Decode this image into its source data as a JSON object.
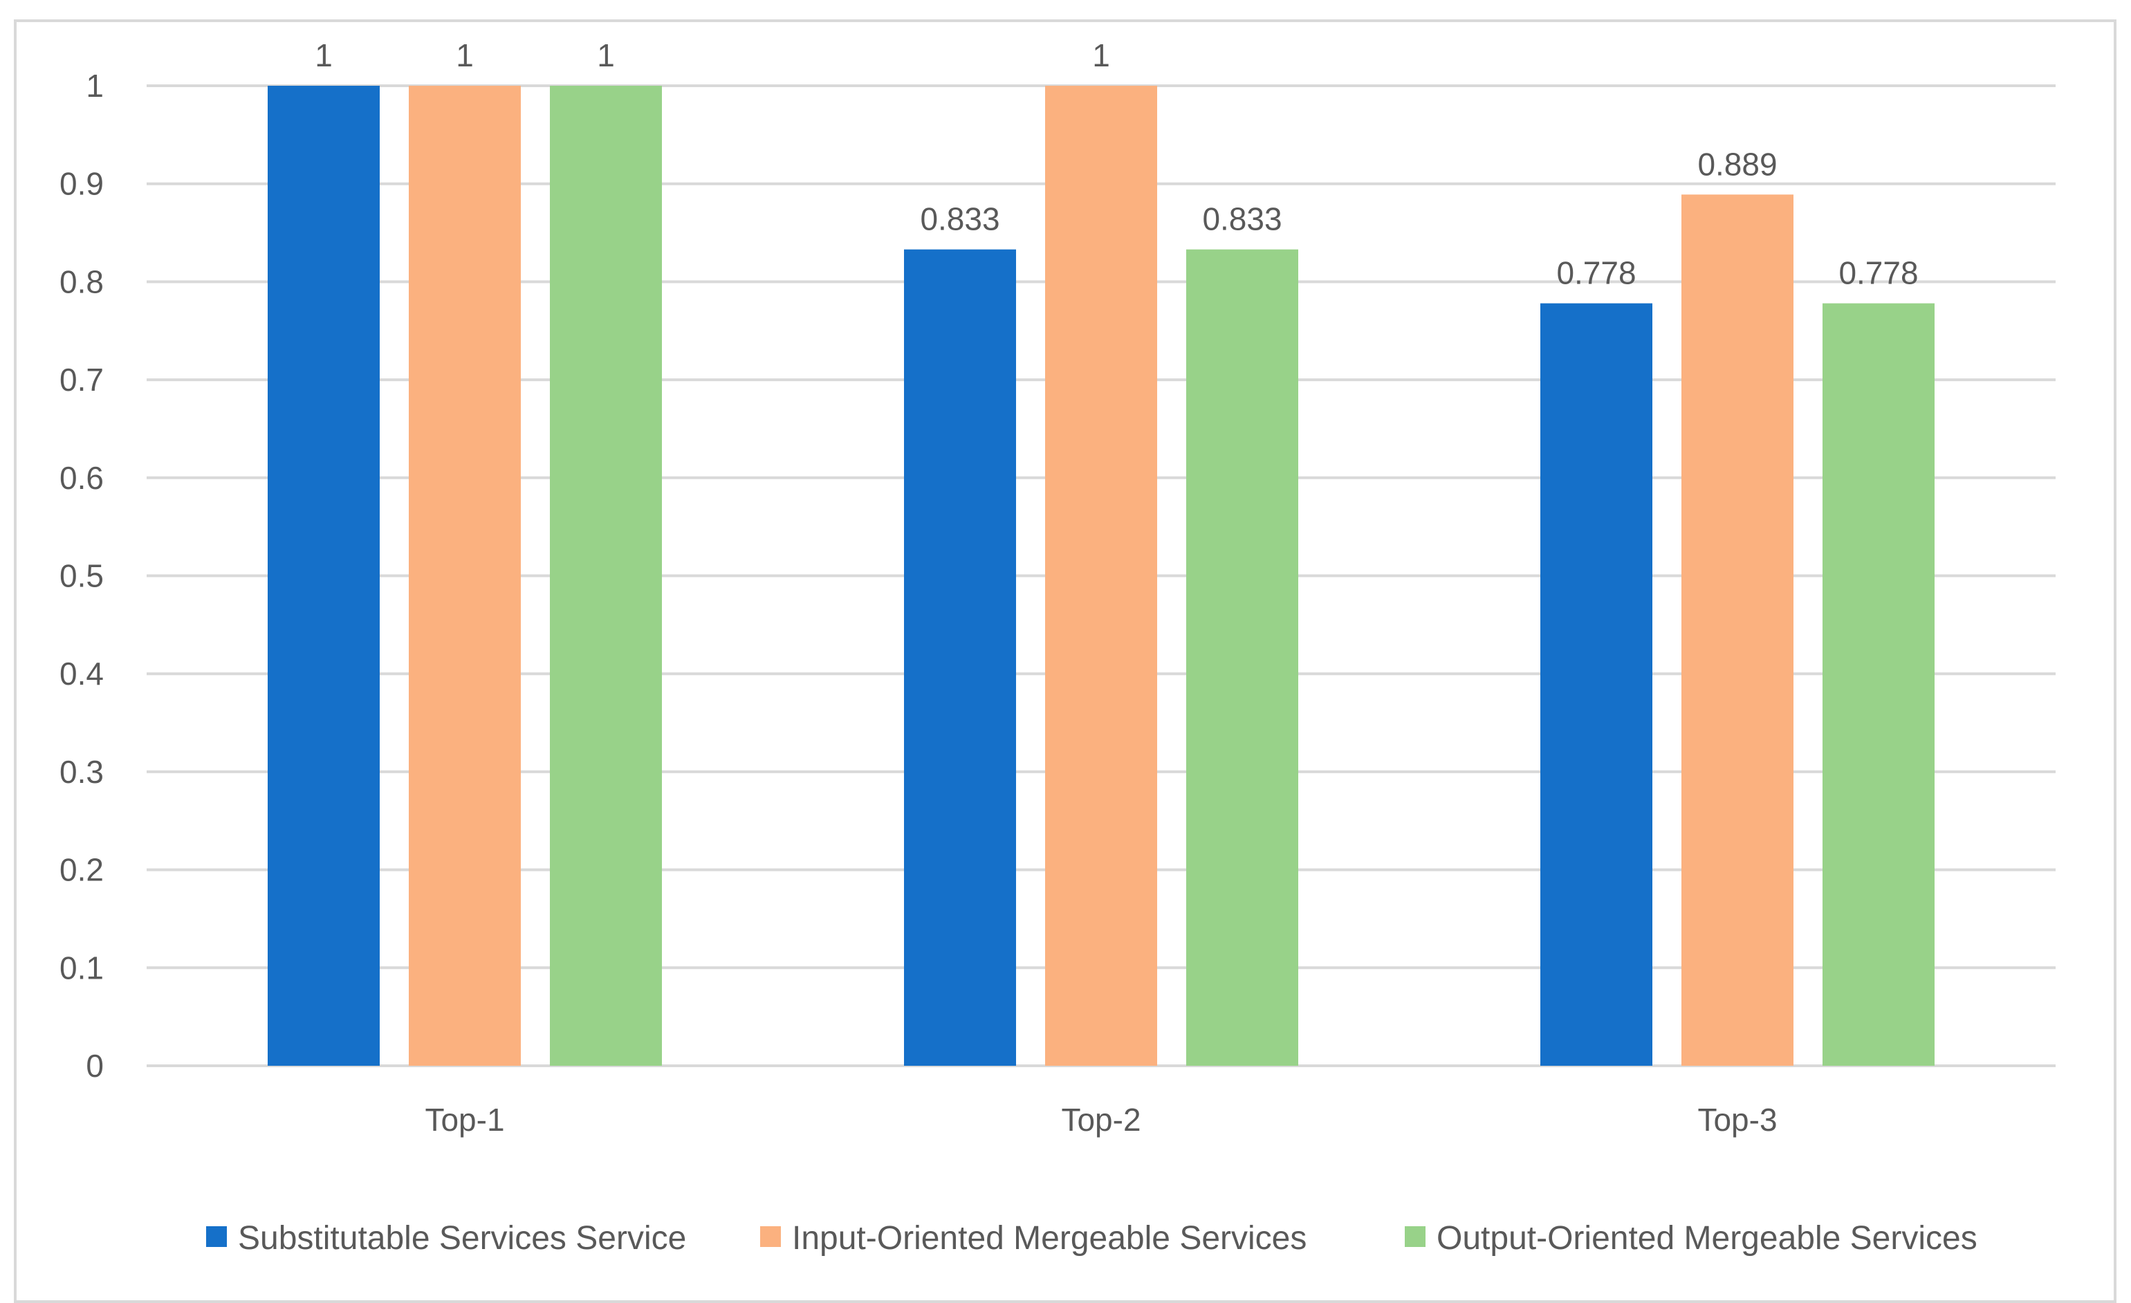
{
  "chart_data": {
    "type": "bar",
    "title": "",
    "xlabel": "",
    "ylabel": "",
    "categories": [
      "Top-1",
      "Top-2",
      "Top-3"
    ],
    "series": [
      {
        "name": "Substitutable Services Service",
        "color": "#1570c9",
        "values": [
          1,
          0.833,
          0.778
        ],
        "labels": [
          "1",
          "0.833",
          "0.778"
        ]
      },
      {
        "name": "Input-Oriented Mergeable Services",
        "color": "#fbb17f",
        "values": [
          1,
          1,
          0.889
        ],
        "labels": [
          "1",
          "1",
          "0.889"
        ]
      },
      {
        "name": "Output-Oriented Mergeable Services",
        "color": "#98d289",
        "values": [
          1,
          0.833,
          0.778
        ],
        "labels": [
          "1",
          "0.833",
          "0.778"
        ]
      }
    ],
    "ylim": [
      0,
      1
    ],
    "yticks": [
      "0",
      "0.1",
      "0.2",
      "0.3",
      "0.4",
      "0.5",
      "0.6",
      "0.7",
      "0.8",
      "0.9",
      "1"
    ],
    "grid": true,
    "gridline_color": "#d9d9d9",
    "legend_position": "bottom"
  }
}
